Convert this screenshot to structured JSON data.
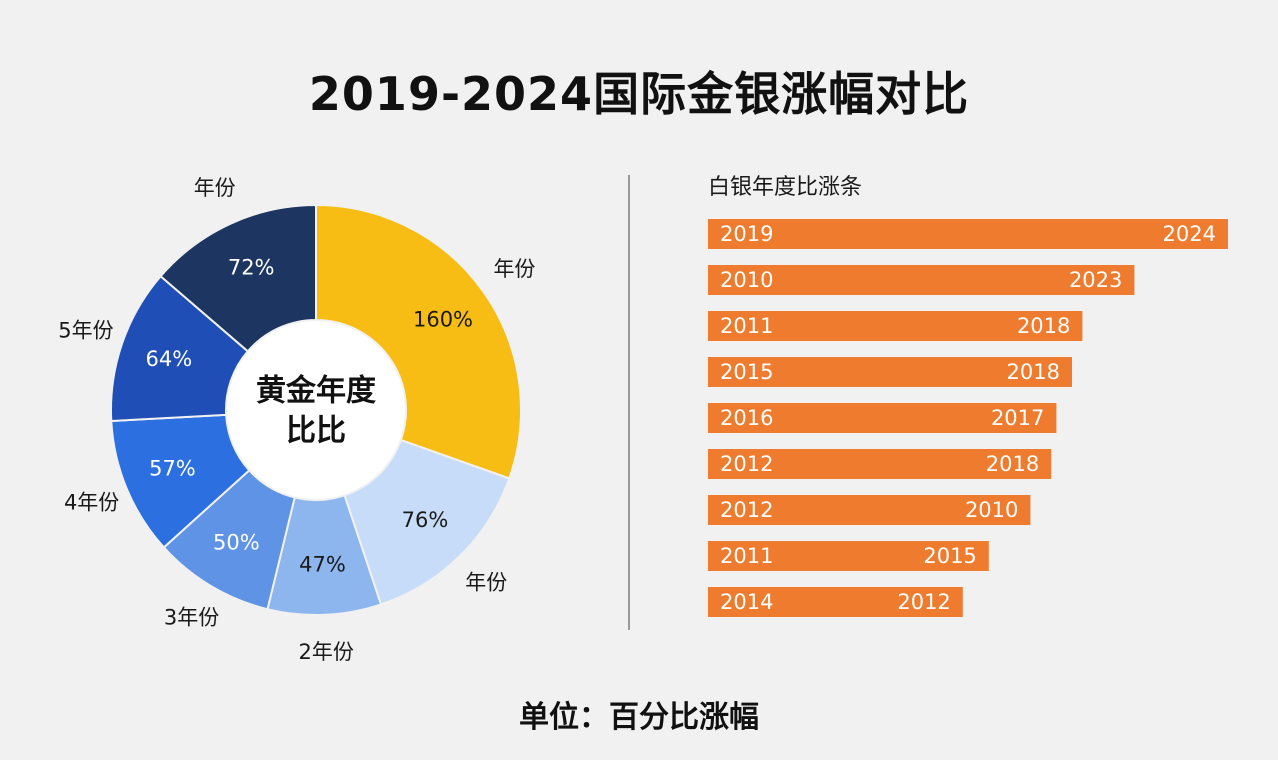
{
  "title": "2019-2024国际金银涨幅对比",
  "unit_label": "单位：百分比涨幅",
  "colors": {
    "gold": "#f7bd14",
    "pale_blue": "#c7dcf8",
    "light_blue": "#8db6ee",
    "mid_blue": "#5f93e6",
    "blue": "#2b6fe0",
    "dark_blue": "#1f4fb6",
    "navy": "#1c3561",
    "bar": "#ef7c2e"
  },
  "chart_data": [
    {
      "type": "pie",
      "subtype": "donut",
      "title": "黄金年度比比",
      "center_label_lines": [
        "黄金年度",
        "比比"
      ],
      "slices": [
        {
          "outer_label": "年份",
          "value": 160,
          "value_label": "160%",
          "color": "#f7bd14"
        },
        {
          "outer_label": "年份",
          "value": 76,
          "value_label": "76%",
          "color": "#c7dcf8"
        },
        {
          "outer_label": "2年份",
          "value": 47,
          "value_label": "47%",
          "color": "#8db6ee"
        },
        {
          "outer_label": "3年份",
          "value": 50,
          "value_label": "50%",
          "color": "#5f93e6"
        },
        {
          "outer_label": "4年份",
          "value": 57,
          "value_label": "57%",
          "color": "#2b6fe0"
        },
        {
          "outer_label": "5年份",
          "value": 64,
          "value_label": "64%",
          "color": "#1f4fb6"
        },
        {
          "outer_label": "年份",
          "value": 72,
          "value_label": "72%",
          "color": "#1c3561"
        }
      ]
    },
    {
      "type": "bar",
      "orientation": "horizontal",
      "title": "白银年度比涨条",
      "bars": [
        {
          "left_label": "2019",
          "right_label": "2024",
          "value": 100
        },
        {
          "left_label": "2010",
          "right_label": "2023",
          "value": 82
        },
        {
          "left_label": "2011",
          "right_label": "2018",
          "value": 72
        },
        {
          "left_label": "2015",
          "right_label": "2018",
          "value": 70
        },
        {
          "left_label": "2016",
          "right_label": "2017",
          "value": 67
        },
        {
          "left_label": "2012",
          "right_label": "2018",
          "value": 66
        },
        {
          "left_label": "2012",
          "right_label": "2010",
          "value": 62
        },
        {
          "left_label": "2011",
          "right_label": "2015",
          "value": 54
        },
        {
          "left_label": "2014",
          "right_label": "2012",
          "value": 49
        }
      ]
    }
  ]
}
